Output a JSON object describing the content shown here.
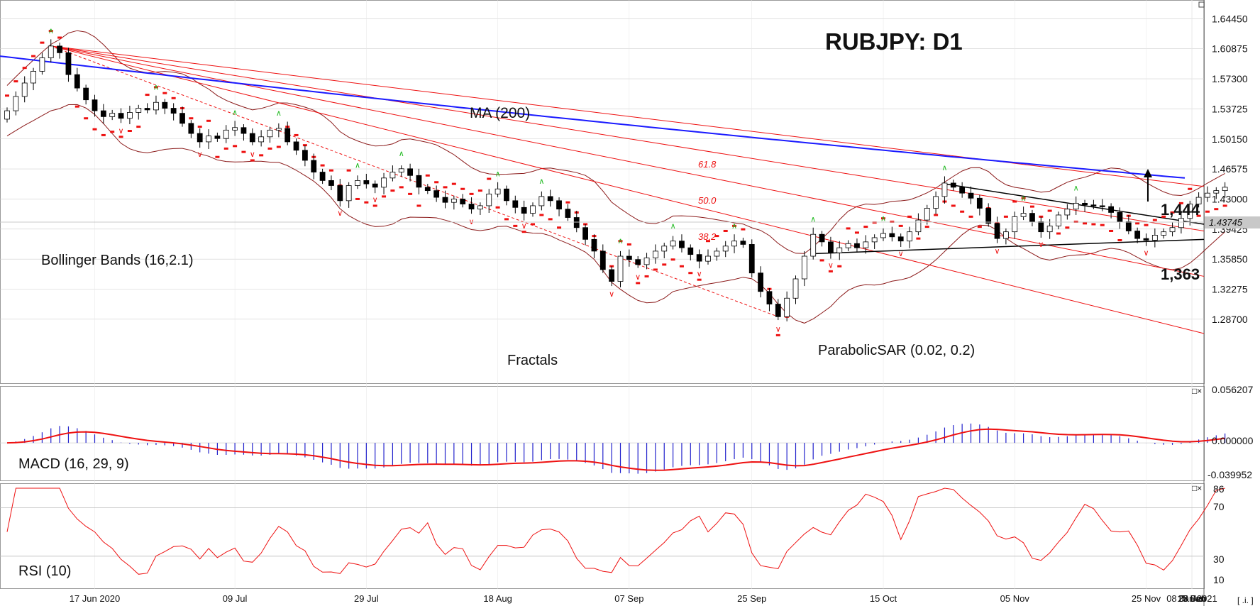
{
  "chart_data": [
    {
      "type": "candlestick",
      "title": "RUBJPY: D1",
      "x_tick_labels": [
        "17 Jun 2020",
        "09 Jul",
        "29 Jul",
        "18 Aug",
        "07 Sep",
        "25 Sep",
        "15 Oct",
        "05 Nov",
        "25 Nov",
        "15 Dec",
        "08 Jan 2021",
        "28 Jan",
        "17 Feb"
      ],
      "y_tick_labels": [
        "1.64450",
        "1.60875",
        "1.57300",
        "1.53725",
        "1.50150",
        "1.46575",
        "1.43000",
        "1.39425",
        "1.35850",
        "1.32275",
        "1.28700"
      ],
      "ylim": [
        1.27,
        1.66
      ],
      "current_price": "1.43745",
      "close_approx": [
        1.535,
        1.552,
        1.568,
        1.582,
        1.598,
        1.612,
        1.604,
        1.578,
        1.562,
        1.548,
        1.535,
        1.528,
        1.532,
        1.526,
        1.533,
        1.538,
        1.536,
        1.545,
        1.538,
        1.532,
        1.52,
        1.508,
        1.498,
        1.505,
        1.502,
        1.512,
        1.515,
        1.508,
        1.498,
        1.504,
        1.512,
        1.514,
        1.498,
        1.488,
        1.476,
        1.462,
        1.452,
        1.446,
        1.428,
        1.446,
        1.452,
        1.448,
        1.444,
        1.455,
        1.462,
        1.466,
        1.458,
        1.444,
        1.44,
        1.432,
        1.426,
        1.43,
        1.424,
        1.418,
        1.422,
        1.436,
        1.442,
        1.428,
        1.42,
        1.413,
        1.422,
        1.433,
        1.428,
        1.418,
        1.408,
        1.396,
        1.382,
        1.368,
        1.346,
        1.332,
        1.362,
        1.358,
        1.352,
        1.36,
        1.368,
        1.374,
        1.38,
        1.372,
        1.364,
        1.356,
        1.362,
        1.368,
        1.374,
        1.38,
        1.376,
        1.342,
        1.32,
        1.305,
        1.29,
        1.312,
        1.335,
        1.362,
        1.388,
        1.379,
        1.366,
        1.372,
        1.377,
        1.372,
        1.379,
        1.384,
        1.389,
        1.385,
        1.38,
        1.391,
        1.405,
        1.419,
        1.433,
        1.449,
        1.444,
        1.437,
        1.431,
        1.419,
        1.401,
        1.383,
        1.391,
        1.409,
        1.413,
        1.403,
        1.391,
        1.398,
        1.411,
        1.418,
        1.425,
        1.423,
        1.422,
        1.421,
        1.414,
        1.403,
        1.392,
        1.383,
        1.381,
        1.387,
        1.391,
        1.396,
        1.407,
        1.424,
        1.432,
        1.437,
        1.44,
        1.444
      ],
      "annotations": [
        "MA (200)",
        "Bollinger Bands (16,2.1)",
        "Fractals",
        "ParabolicSAR (0.02, 0.2)",
        "61.8",
        "50.0",
        "38.2",
        "1,444",
        "1,363"
      ]
    },
    {
      "type": "bar",
      "title": "MACD (16, 29, 9)",
      "y_tick_labels": [
        "0.056207",
        "0.000000",
        "-0.039952"
      ],
      "ylim": [
        -0.04,
        0.0562
      ]
    },
    {
      "type": "line",
      "title": "RSI (10)",
      "y_tick_labels": [
        "86",
        "70",
        "30",
        "10"
      ],
      "ylim": [
        10,
        86
      ]
    }
  ],
  "ui": {
    "chart_title": "RUBJPY: D1",
    "label_ma": "MA (200)",
    "label_bb": "Bollinger Bands (16,2.1)",
    "label_fractals": "Fractals",
    "label_sar": "ParabolicSAR (0.02, 0.2)",
    "fib_618": "61.8",
    "fib_500": "50.0",
    "fib_382": "38.2",
    "level_high": "1,444",
    "level_low": "1,363",
    "current_price": "1.43745",
    "macd_label": "MACD (16, 29, 9)",
    "rsi_label": "RSI (10)",
    "macd_top": "0.056207",
    "macd_zero": "0.000000",
    "macd_bottom": "-0.039952",
    "rsi_86": "86",
    "rsi_70": "70",
    "rsi_30": "30",
    "rsi_10": "10",
    "corner_button": "[ .i. ]",
    "window_controls": "□×"
  },
  "colors": {
    "candle_up": "#ffffff",
    "candle_down": "#000000",
    "ma": "#1a1aff",
    "bollinger": "#8b1a1a",
    "fib": "#ee1111",
    "sar": "#ee1111",
    "fractal_up": "#22bb22",
    "fractal_down": "#ee1111",
    "macd_hist": "#2222cc",
    "signal": "#ee1111",
    "rsi": "#ee1111",
    "grid": "#cfcfcf"
  }
}
